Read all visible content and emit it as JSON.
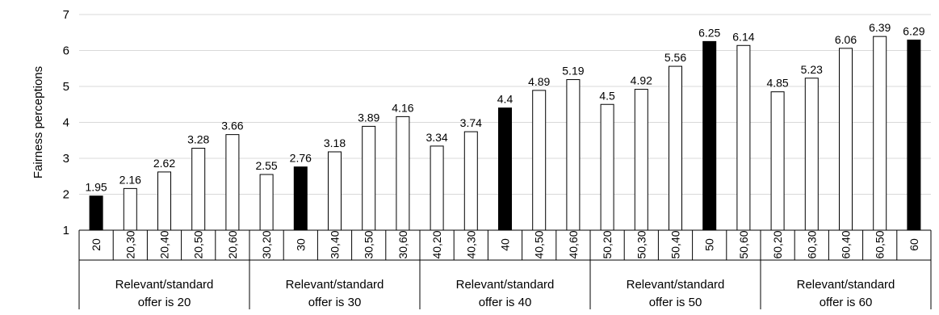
{
  "chart_data": {
    "type": "bar",
    "ylabel": "Fairness perceptions",
    "xlabel": "",
    "title": "",
    "ylim": [
      1,
      7
    ],
    "yticks": [
      1,
      2,
      3,
      4,
      5,
      6,
      7
    ],
    "grid": true,
    "legend": "none",
    "bar_color_default": "#ffffff",
    "bar_color_highlight": "#000000",
    "groups": [
      {
        "label_line1": "Relevant/standard",
        "label_line2": "offer is 20",
        "categories": [
          "20",
          "20,30",
          "20,40",
          "20,50",
          "20,60"
        ],
        "values": [
          1.95,
          2.16,
          2.62,
          3.28,
          3.66
        ],
        "value_labels": [
          "1.95",
          "2.16",
          "2.62",
          "3.28",
          "3.66"
        ],
        "highlight": [
          true,
          false,
          false,
          false,
          false
        ]
      },
      {
        "label_line1": "Relevant/standard",
        "label_line2": "offer is 30",
        "categories": [
          "30,20",
          "30",
          "30,40",
          "30,50",
          "30,60"
        ],
        "values": [
          2.55,
          2.76,
          3.18,
          3.89,
          4.16
        ],
        "value_labels": [
          "2.55",
          "2.76",
          "3.18",
          "3.89",
          "4.16"
        ],
        "highlight": [
          false,
          true,
          false,
          false,
          false
        ]
      },
      {
        "label_line1": "Relevant/standard",
        "label_line2": "offer is 40",
        "categories": [
          "40,20",
          "40,30",
          "40",
          "40,50",
          "40,60"
        ],
        "values": [
          3.34,
          3.74,
          4.4,
          4.89,
          5.19
        ],
        "value_labels": [
          "3.34",
          "3.74",
          "4.4",
          "4.89",
          "5.19"
        ],
        "highlight": [
          false,
          false,
          true,
          false,
          false
        ]
      },
      {
        "label_line1": "Relevant/standard",
        "label_line2": "offer is 50",
        "categories": [
          "50,20",
          "50,30",
          "50,40",
          "50",
          "50,60"
        ],
        "values": [
          4.5,
          4.92,
          5.56,
          6.25,
          6.14
        ],
        "value_labels": [
          "4.5",
          "4.92",
          "5.56",
          "6.25",
          "6.14"
        ],
        "highlight": [
          false,
          false,
          false,
          true,
          false
        ]
      },
      {
        "label_line1": "Relevant/standard",
        "label_line2": "offer is 60",
        "categories": [
          "60,20",
          "60,30",
          "60,40",
          "60,50",
          "60"
        ],
        "values": [
          4.85,
          5.23,
          6.06,
          6.39,
          6.29
        ],
        "value_labels": [
          "4.85",
          "5.23",
          "6.06",
          "6.39",
          "6.29"
        ],
        "highlight": [
          false,
          false,
          false,
          false,
          true
        ]
      }
    ]
  }
}
